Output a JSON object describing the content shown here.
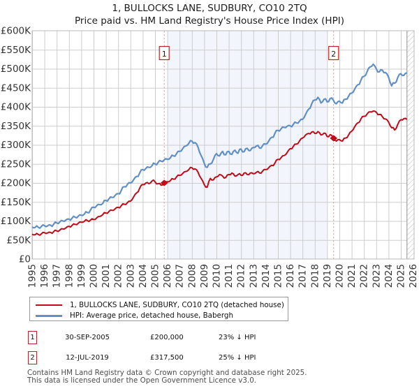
{
  "title": {
    "line1": "1, BULLOCKS LANE, SUDBURY, CO10 2TQ",
    "line2": "Price paid vs. HM Land Registry's House Price Index (HPI)"
  },
  "chart_data": {
    "type": "line",
    "x_start": 1995,
    "x_step": 0.25,
    "xlim": [
      1995,
      2026.1
    ],
    "ylim": [
      0,
      600000
    ],
    "grid": true,
    "y_tick_labels": [
      "£0",
      "£50K",
      "£100K",
      "£150K",
      "£200K",
      "£250K",
      "£300K",
      "£350K",
      "£400K",
      "£450K",
      "£500K",
      "£550K",
      "£600K"
    ],
    "x_ticks": [
      1995,
      1996,
      1997,
      1998,
      1999,
      2000,
      2001,
      2002,
      2003,
      2004,
      2005,
      2006,
      2007,
      2008,
      2009,
      2010,
      2011,
      2012,
      2013,
      2014,
      2015,
      2016,
      2017,
      2018,
      2019,
      2020,
      2021,
      2022,
      2023,
      2024,
      2025,
      2026
    ],
    "units": "GBP thousands",
    "series": [
      {
        "name": "1, BULLOCKS LANE, SUDBURY, CO10 2TQ (detached house)",
        "color": "#c00b18",
        "visual_noise": 2.4,
        "values": [
          65,
          64,
          64.5,
          66,
          69.5,
          68.5,
          70,
          72,
          74,
          76,
          79,
          82,
          86,
          88.5,
          91,
          94,
          97,
          99,
          101,
          102.5,
          104,
          108,
          112,
          117,
          121,
          125,
          128,
          132,
          136,
          140,
          144,
          148,
          152,
          163,
          174,
          186,
          196,
          200,
          198,
          205,
          203,
          198,
          194,
          200,
          203,
          206,
          210,
          216,
          220,
          225,
          230,
          235,
          240,
          237,
          228,
          212,
          196,
          189,
          212,
          208,
          216,
          222,
          218,
          214,
          222,
          226,
          218,
          222,
          220,
          226,
          222,
          226,
          224,
          228,
          226,
          231,
          235,
          240,
          246,
          252,
          262,
          266,
          272,
          280,
          290,
          296,
          302,
          310,
          318,
          326,
          330,
          334,
          330,
          335,
          326,
          331,
          322,
          327,
          318,
          310,
          314,
          310,
          318,
          326,
          336,
          348,
          358,
          368,
          375,
          381,
          387,
          389,
          386,
          380,
          374,
          368,
          360,
          345,
          339,
          354,
          366,
          369,
          367
        ]
      },
      {
        "name": "HPI: Average price, detached house, Babergh",
        "color": "#6190c6",
        "visual_noise": 3.1,
        "values": [
          84,
          83,
          83.5,
          85.5,
          88,
          87,
          89,
          91.5,
          95,
          97.5,
          100,
          102.5,
          105,
          107.5,
          110,
          112.5,
          115,
          118,
          122,
          129,
          136,
          140,
          143,
          146,
          154,
          158,
          162,
          167,
          172,
          180,
          190,
          196,
          200,
          208,
          217,
          226,
          235,
          238,
          241,
          245,
          250,
          254,
          257,
          261,
          262,
          266,
          271,
          277,
          283,
          290,
          297,
          304,
          310,
          306,
          294,
          272,
          252,
          241,
          250,
          262,
          277,
          271,
          283,
          274,
          283,
          275,
          286,
          278,
          289,
          282,
          291,
          285,
          293,
          297,
          292,
          298,
          302,
          310,
          320,
          330,
          338,
          342,
          346,
          349,
          350,
          354,
          358,
          362,
          367,
          380,
          394,
          408,
          418,
          425,
          410,
          420,
          413,
          422,
          418,
          408,
          415,
          410,
          420,
          428,
          436,
          447,
          458,
          470,
          480,
          492,
          505,
          512,
          500,
          492,
          496,
          490,
          478,
          455,
          462,
          477,
          487,
          483,
          489
        ]
      }
    ],
    "sales": [
      {
        "label": "1",
        "date": "30-SEP-2005",
        "decimal_year": 2005.75,
        "price": 200000,
        "price_label": "£200,000",
        "vs_hpi": "23% ↓ HPI"
      },
      {
        "label": "2",
        "date": "12-JUL-2019",
        "decimal_year": 2019.53,
        "price": 317500,
        "price_label": "£317,500",
        "vs_hpi": "25% ↓ HPI"
      }
    ],
    "shaded_region": [
      2006,
      2019
    ],
    "hatch_start": 2025.5,
    "colors": {
      "shade": "#f2f5fc",
      "grid": "#cdcdcd",
      "border": "#b8b8b8",
      "sale_dash": "#f29698",
      "hatch_line": "#c9c9c9",
      "hatch_edge": "#8f8f8f",
      "axis_text": "#333333"
    }
  },
  "legend": {
    "items": [
      {
        "label": "1, BULLOCKS LANE, SUDBURY, CO10 2TQ (detached house)",
        "color": "#c00b18"
      },
      {
        "label": "HPI: Average price, detached house, Babergh",
        "color": "#6190c6"
      }
    ]
  },
  "footer": {
    "line1": "Contains HM Land Registry data © Crown copyright and database right 2025.",
    "line2": "This data is licensed under the Open Government Licence v3.0."
  }
}
